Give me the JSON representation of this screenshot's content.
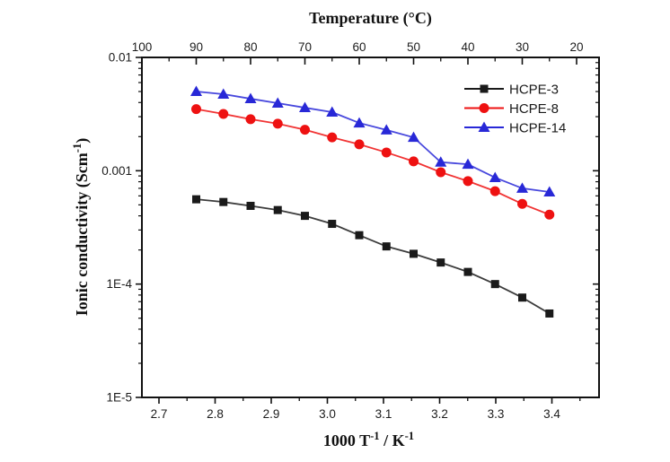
{
  "figure": {
    "kind": "scientific line chart (Arrhenius plot of ionic conductivity)"
  },
  "chart_data": {
    "type": "line",
    "title": "",
    "top_axis": {
      "label": "Temperature (°C)",
      "ticks": [
        100,
        90,
        80,
        70,
        60,
        50,
        40,
        30,
        20
      ],
      "minor_step_c": 5
    },
    "bottom_axis": {
      "label": "1000 T^{-1} / K^{-1}",
      "ticks": [
        "2.7",
        "2.8",
        "2.9",
        "3.0",
        "3.1",
        "3.2",
        "3.3",
        "3.4"
      ],
      "range_approx": [
        2.67,
        3.48
      ]
    },
    "y_axis": {
      "label": "Ionic conductivity (Scm^{-1})",
      "scale": "log",
      "range": [
        1e-05,
        0.01
      ],
      "ticks": [
        {
          "value": 0.01,
          "label": "0.01"
        },
        {
          "value": 0.001,
          "label": "0.001"
        },
        {
          "value": 0.0001,
          "label": "1E-4"
        },
        {
          "value": 1e-05,
          "label": "1E-5"
        }
      ]
    },
    "temperatures_c": [
      90,
      85,
      80,
      75,
      70,
      65,
      60,
      55,
      50,
      45,
      40,
      35,
      30,
      25
    ],
    "series": [
      {
        "name": "HCPE-3",
        "color": "#1a1a1a",
        "marker": "square",
        "conductivity_s_cm": [
          0.00056,
          0.00053,
          0.00049,
          0.00045,
          0.0004,
          0.00034,
          0.00027,
          0.000215,
          0.000185,
          0.000155,
          0.000128,
          0.0001,
          7.6e-05,
          5.5e-05
        ]
      },
      {
        "name": "HCPE-8",
        "color": "#ee1111",
        "marker": "circle",
        "conductivity_s_cm": [
          0.0035,
          0.00317,
          0.00285,
          0.0026,
          0.0023,
          0.00197,
          0.00171,
          0.00145,
          0.00121,
          0.00097,
          0.00081,
          0.00066,
          0.00051,
          0.00041
        ]
      },
      {
        "name": "HCPE-14",
        "color": "#2828d7",
        "marker": "triangle",
        "conductivity_s_cm": [
          0.005,
          0.00474,
          0.00432,
          0.00395,
          0.0036,
          0.00329,
          0.00264,
          0.00229,
          0.00197,
          0.00119,
          0.00114,
          0.00087,
          0.0007,
          0.00065
        ]
      }
    ],
    "legend": {
      "position": "top-right-inside",
      "entries": [
        "HCPE-3",
        "HCPE-8",
        "HCPE-14"
      ]
    },
    "grid": false
  }
}
